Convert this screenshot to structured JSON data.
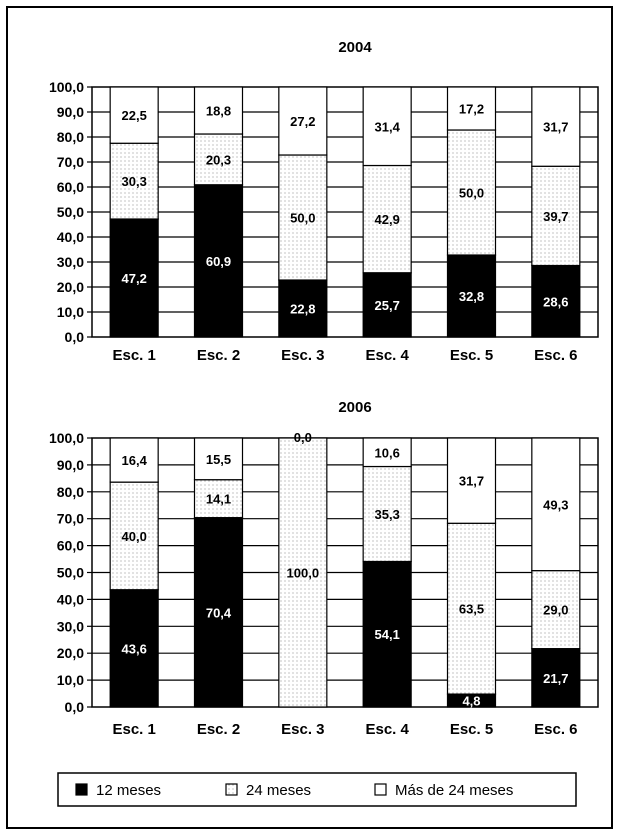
{
  "colors": {
    "black": "#000000",
    "white": "#ffffff",
    "dotted": "#e8e8e8"
  },
  "legend": {
    "items": [
      {
        "label": "12 meses",
        "swatch": "solid"
      },
      {
        "label": "24 meses",
        "swatch": "dotted"
      },
      {
        "label": "Más de 24 meses",
        "swatch": "empty"
      }
    ]
  },
  "chart_data": [
    {
      "type": "bar",
      "stacked": true,
      "title": "2004",
      "categories": [
        "Esc. 1",
        "Esc. 2",
        "Esc. 3",
        "Esc. 4",
        "Esc. 5",
        "Esc. 6"
      ],
      "ylim": [
        0,
        100
      ],
      "yticks": [
        "0,0",
        "10,0",
        "20,0",
        "30,0",
        "40,0",
        "50,0",
        "60,0",
        "70,0",
        "80,0",
        "90,0",
        "100,0"
      ],
      "grid": true,
      "series": [
        {
          "name": "12 meses",
          "values": [
            47.2,
            60.9,
            22.8,
            25.7,
            32.8,
            28.6
          ],
          "labels": [
            "47,2",
            "60,9",
            "22,8",
            "25,7",
            "32,8",
            "28,6"
          ]
        },
        {
          "name": "24 meses",
          "values": [
            30.3,
            20.3,
            50.0,
            42.9,
            50.0,
            39.7
          ],
          "labels": [
            "30,3",
            "20,3",
            "50,0",
            "42,9",
            "50,0",
            "39,7"
          ]
        },
        {
          "name": "Más de 24 meses",
          "values": [
            22.5,
            18.8,
            27.2,
            31.4,
            17.2,
            31.7
          ],
          "labels": [
            "22,5",
            "18,8",
            "27,2",
            "31,4",
            "17,2",
            "31,7"
          ]
        }
      ]
    },
    {
      "type": "bar",
      "stacked": true,
      "title": "2006",
      "categories": [
        "Esc. 1",
        "Esc. 2",
        "Esc. 3",
        "Esc. 4",
        "Esc. 5",
        "Esc. 6"
      ],
      "ylim": [
        0,
        100
      ],
      "yticks": [
        "0,0",
        "10,0",
        "20,0",
        "30,0",
        "40,0",
        "50,0",
        "60,0",
        "70,0",
        "80,0",
        "90,0",
        "100,0"
      ],
      "grid": true,
      "series": [
        {
          "name": "12 meses",
          "values": [
            43.6,
            70.4,
            0.0,
            54.1,
            4.8,
            21.7
          ],
          "labels": [
            "43,6",
            "70,4",
            "0,0",
            "54,1",
            "4,8",
            "21,7"
          ]
        },
        {
          "name": "24 meses",
          "values": [
            40.0,
            14.1,
            100.0,
            35.3,
            63.5,
            29.0
          ],
          "labels": [
            "40,0",
            "14,1",
            "100,0",
            "35,3",
            "63,5",
            "29,0"
          ]
        },
        {
          "name": "Más de 24 meses",
          "values": [
            16.4,
            15.5,
            0.0,
            10.6,
            31.7,
            49.3
          ],
          "labels": [
            "16,4",
            "15,5",
            "0,0",
            "10,6",
            "31,7",
            "49,3"
          ]
        }
      ]
    }
  ]
}
